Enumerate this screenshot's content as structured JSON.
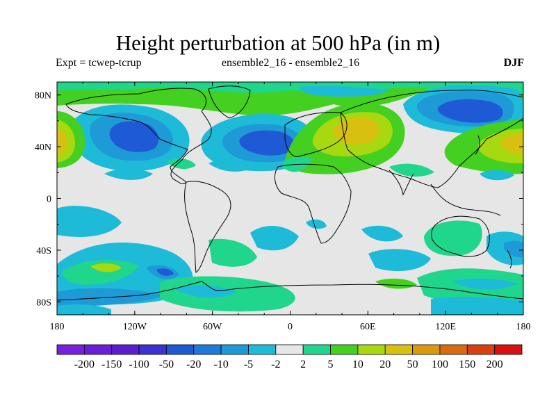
{
  "header": {
    "title": "Height perturbation at 500 hPa (in m)",
    "expt_label": "Expt = tcwep-tcrup",
    "comparison_label": "ensemble2_16 - ensemble2_16",
    "season_label": "DJF"
  },
  "map": {
    "lon_ticks": [
      "180",
      "120W",
      "60W",
      "0",
      "60E",
      "120E",
      "180"
    ],
    "lat_ticks": [
      "80N",
      "40N",
      "0",
      "40S",
      "80S"
    ],
    "lon_range": [
      -180,
      180
    ],
    "lat_range": [
      -90,
      90
    ],
    "background_color": "#e6e6e6"
  },
  "colorbar": {
    "labels": [
      "-200",
      "-150",
      "-100",
      "-50",
      "-20",
      "-10",
      "-5",
      "-2",
      "2",
      "5",
      "10",
      "20",
      "50",
      "100",
      "150",
      "200"
    ],
    "colors": [
      "#7a1fe0",
      "#6a1ed8",
      "#5a1ed0",
      "#3c32d4",
      "#1f5ad6",
      "#1e7ad6",
      "#1e9ad6",
      "#1ebbd8",
      "#e6e6e6",
      "#1fd68c",
      "#44d020",
      "#a8d810",
      "#d8c010",
      "#d89a10",
      "#d86a10",
      "#d84010",
      "#d81010"
    ]
  }
}
